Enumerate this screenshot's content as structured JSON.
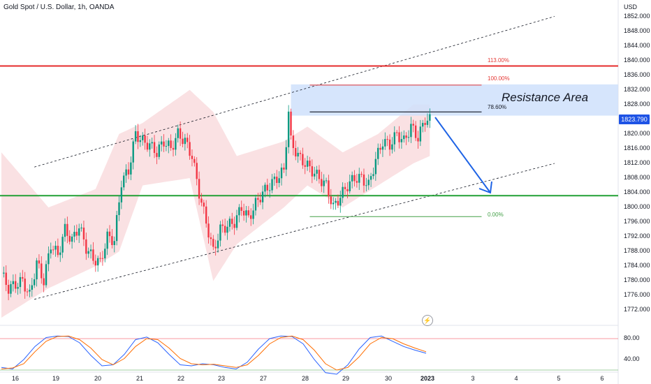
{
  "header": {
    "title": "Gold Spot / U.S. Dollar, 1h, OANDA"
  },
  "axis": {
    "currency": "USD"
  },
  "price_tag": "1823.790",
  "annotations": {
    "resistance_label": "Resistance Area",
    "fib_113": "113.00%",
    "fib_100": "100.00%",
    "fib_786": "78.60%",
    "fib_0": "0.00%"
  },
  "colors": {
    "up": "#089981",
    "down": "#f23645",
    "band": "#f8d7da",
    "resistance_box": "#cfe0fb",
    "support": "#22a035",
    "resistance_line": "#e52b2b",
    "arrow": "#1e63e5",
    "k_line": "#2962ff",
    "d_line": "#ff6d00"
  },
  "chart_data": [
    {
      "type": "candlestick",
      "title": "Gold Spot / U.S. Dollar, 1h, OANDA",
      "ylabel": "USD",
      "ylim": [
        1770,
        1854
      ],
      "y_ticks": [
        "1852.000",
        "1848.000",
        "1844.000",
        "1840.000",
        "1836.000",
        "1832.000",
        "1828.000",
        "1824.000",
        "1820.000",
        "1816.000",
        "1812.000",
        "1808.000",
        "1804.000",
        "1800.000",
        "1796.000",
        "1792.000",
        "1788.000",
        "1784.000",
        "1780.000",
        "1776.000",
        "1772.000"
      ],
      "x_ticks": [
        "16",
        "19",
        "20",
        "21",
        "22",
        "23",
        "27",
        "28",
        "29",
        "30",
        "2023",
        "3",
        "4",
        "5",
        "6"
      ],
      "close_path": [
        [
          0,
          1782
        ],
        [
          3,
          1778
        ],
        [
          6,
          1779
        ],
        [
          9,
          1780
        ],
        [
          12,
          1776
        ],
        [
          15,
          1785
        ],
        [
          18,
          1780
        ],
        [
          21,
          1790
        ],
        [
          24,
          1787
        ],
        [
          27,
          1794
        ],
        [
          30,
          1791
        ],
        [
          33,
          1795
        ],
        [
          36,
          1789
        ],
        [
          39,
          1786
        ],
        [
          42,
          1785
        ],
        [
          45,
          1792
        ],
        [
          48,
          1791
        ],
        [
          51,
          1807
        ],
        [
          54,
          1810
        ],
        [
          57,
          1820
        ],
        [
          60,
          1818
        ],
        [
          63,
          1817
        ],
        [
          66,
          1815
        ],
        [
          69,
          1818
        ],
        [
          72,
          1816
        ],
        [
          75,
          1820
        ],
        [
          78,
          1818
        ],
        [
          81,
          1814
        ],
        [
          84,
          1804
        ],
        [
          87,
          1796
        ],
        [
          90,
          1788
        ],
        [
          93,
          1794
        ],
        [
          96,
          1795
        ],
        [
          99,
          1796
        ],
        [
          102,
          1800
        ],
        [
          105,
          1797
        ],
        [
          108,
          1801
        ],
        [
          111,
          1804
        ],
        [
          114,
          1806
        ],
        [
          117,
          1808
        ],
        [
          120,
          1810
        ],
        [
          122,
          1826
        ],
        [
          123,
          1818
        ],
        [
          126,
          1814
        ],
        [
          129,
          1812
        ],
        [
          132,
          1810
        ],
        [
          135,
          1808
        ],
        [
          138,
          1806
        ],
        [
          141,
          1800
        ],
        [
          144,
          1803
        ],
        [
          147,
          1806
        ],
        [
          150,
          1808
        ],
        [
          153,
          1808
        ],
        [
          156,
          1806
        ],
        [
          159,
          1813
        ],
        [
          162,
          1818
        ],
        [
          165,
          1817
        ],
        [
          168,
          1820
        ],
        [
          171,
          1818
        ],
        [
          174,
          1822
        ],
        [
          177,
          1819
        ],
        [
          180,
          1824
        ],
        [
          182,
          1823.79
        ]
      ],
      "upper_band": [
        [
          0,
          1815
        ],
        [
          20,
          1800
        ],
        [
          40,
          1805
        ],
        [
          50,
          1820
        ],
        [
          60,
          1823
        ],
        [
          80,
          1832
        ],
        [
          90,
          1826
        ],
        [
          100,
          1814
        ],
        [
          120,
          1818
        ],
        [
          130,
          1822
        ],
        [
          145,
          1815
        ],
        [
          160,
          1820
        ],
        [
          175,
          1828
        ],
        [
          182,
          1828
        ]
      ],
      "lower_band": [
        [
          0,
          1770
        ],
        [
          20,
          1778
        ],
        [
          40,
          1784
        ],
        [
          50,
          1788
        ],
        [
          60,
          1806
        ],
        [
          80,
          1808
        ],
        [
          90,
          1780
        ],
        [
          100,
          1790
        ],
        [
          120,
          1800
        ],
        [
          130,
          1806
        ],
        [
          145,
          1800
        ],
        [
          160,
          1806
        ],
        [
          175,
          1812
        ],
        [
          182,
          1814
        ]
      ],
      "horizontal_levels": {
        "resistance": 1838.5,
        "support": 1803.2
      },
      "resistance_area": {
        "from": 1825,
        "to": 1833.5
      },
      "fibonacci": {
        "113.00%": 1838.5,
        "100.00%": 1833.3,
        "78.60%": 1826.0,
        "0.00%": 1797.5
      },
      "channel": {
        "upper": [
          [
            14,
            1811
          ],
          [
            235,
            1852
          ]
        ],
        "lower": [
          [
            14,
            1775
          ],
          [
            235,
            1812
          ]
        ]
      },
      "current_price": 1823.79
    },
    {
      "type": "line",
      "title": "",
      "ylim": [
        20,
        100
      ],
      "y_ticks": [
        "80.00",
        "40.00"
      ],
      "levels": [
        80,
        20
      ],
      "series": [
        {
          "values": [
            25,
            22,
            40,
            65,
            82,
            85,
            84,
            72,
            48,
            28,
            30,
            50,
            78,
            83,
            72,
            50,
            30,
            28,
            32,
            30,
            25,
            22,
            35,
            60,
            80,
            85,
            84,
            70,
            40,
            15,
            12,
            30,
            60,
            82,
            85,
            75,
            65,
            58,
            52
          ]
        },
        {
          "values": [
            22,
            24,
            32,
            55,
            75,
            84,
            85,
            78,
            62,
            40,
            30,
            42,
            65,
            80,
            78,
            62,
            42,
            32,
            30,
            31,
            28,
            25,
            30,
            48,
            70,
            82,
            85,
            78,
            58,
            32,
            20,
            25,
            45,
            70,
            82,
            80,
            70,
            62,
            55
          ]
        }
      ]
    }
  ]
}
